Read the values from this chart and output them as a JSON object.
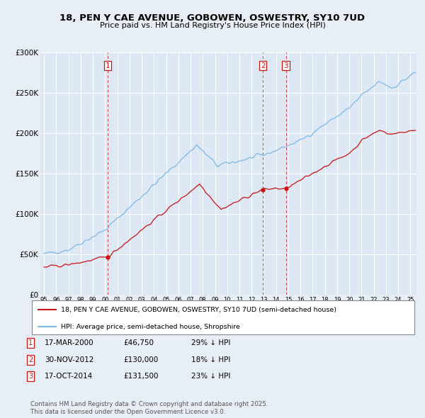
{
  "title": "18, PEN Y CAE AVENUE, GOBOWEN, OSWESTRY, SY10 7UD",
  "subtitle": "Price paid vs. HM Land Registry's House Price Index (HPI)",
  "legend_label_red": "18, PEN Y CAE AVENUE, GOBOWEN, OSWESTRY, SY10 7UD (semi-detached house)",
  "legend_label_blue": "HPI: Average price, semi-detached house, Shropshire",
  "footer_line1": "Contains HM Land Registry data © Crown copyright and database right 2025.",
  "footer_line2": "This data is licensed under the Open Government Licence v3.0.",
  "transactions": [
    {
      "num": 1,
      "date": "17-MAR-2000",
      "price": "£46,750",
      "rel": "29% ↓ HPI",
      "x_year": 2000.21,
      "y_price": 46750
    },
    {
      "num": 2,
      "date": "30-NOV-2012",
      "price": "£130,000",
      "rel": "18% ↓ HPI",
      "x_year": 2012.92,
      "y_price": 130000
    },
    {
      "num": 3,
      "date": "17-OCT-2014",
      "price": "£131,500",
      "rel": "23% ↓ HPI",
      "x_year": 2014.8,
      "y_price": 131500
    }
  ],
  "hpi_color": "#7ab8e8",
  "price_color": "#cc1111",
  "dashed_line_color": "#cc1111",
  "background_color": "#e8eef5",
  "plot_bg_color": "#dde8f4",
  "ylim": [
    0,
    300000
  ],
  "yticks": [
    0,
    50000,
    100000,
    150000,
    200000,
    250000,
    300000
  ],
  "ytick_labels": [
    "£0",
    "£50K",
    "£100K",
    "£150K",
    "£200K",
    "£250K",
    "£300K"
  ],
  "xlim_start": 1994.7,
  "xlim_end": 2025.5,
  "grid_color": "#ffffff"
}
